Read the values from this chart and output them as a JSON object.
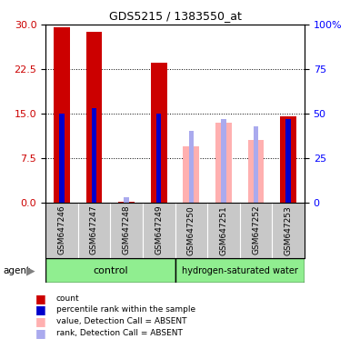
{
  "title": "GDS5215 / 1383550_at",
  "samples": [
    "GSM647246",
    "GSM647247",
    "GSM647248",
    "GSM647249",
    "GSM647250",
    "GSM647251",
    "GSM647252",
    "GSM647253"
  ],
  "count_values": [
    29.5,
    28.8,
    0.1,
    23.5,
    null,
    null,
    null,
    14.5
  ],
  "rank_values_pct": [
    50,
    53,
    null,
    50,
    null,
    null,
    null,
    47
  ],
  "absent_value_values": [
    null,
    null,
    null,
    null,
    9.5,
    13.5,
    10.5,
    null
  ],
  "absent_rank_values_pct": [
    null,
    null,
    3,
    null,
    40,
    47,
    43,
    null
  ],
  "left_ylim": [
    0,
    30
  ],
  "right_ylim": [
    0,
    100
  ],
  "left_yticks": [
    0,
    7.5,
    15,
    22.5,
    30
  ],
  "right_yticks": [
    0,
    25,
    50,
    75,
    100
  ],
  "right_yticklabels": [
    "0",
    "25",
    "50",
    "75",
    "100%"
  ],
  "count_color": "#CC0000",
  "rank_color": "#0000CC",
  "absent_value_color": "#FFB0B0",
  "absent_rank_color": "#AAAAEE",
  "group_bg": "#C8C8C8",
  "green_color": "#90EE90"
}
